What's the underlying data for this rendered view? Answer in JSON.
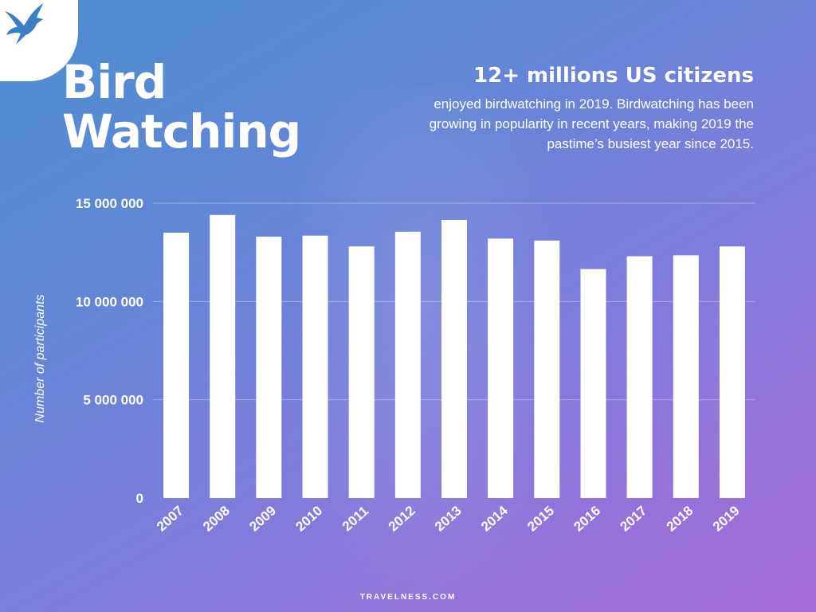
{
  "brand": {
    "logo_icon": "bird-icon",
    "footer": "TRAVELNESS.COM"
  },
  "title_lines": [
    "Bird",
    "Watching"
  ],
  "headline": "12+ millions US citizens",
  "description": "enjoyed birdwatching in 2019. Birdwatching has been growing in popularity in recent years, making 2019 the pastime’s busiest year since 2015.",
  "colors": {
    "bar": "#ffffff",
    "text": "#ffffff",
    "gridline": "rgba(255,255,255,0.35)"
  },
  "chart_data": {
    "type": "bar",
    "categories": [
      "2007",
      "2008",
      "2009",
      "2010",
      "2011",
      "2012",
      "2013",
      "2014",
      "2015",
      "2016",
      "2017",
      "2018",
      "2019"
    ],
    "values": [
      13500000,
      14400000,
      13300000,
      13350000,
      12800000,
      13550000,
      14150000,
      13200000,
      13100000,
      11650000,
      12300000,
      12350000,
      12800000
    ],
    "ylabel": "Number of participants",
    "ylim": [
      0,
      15000000
    ],
    "y_ticks": [
      {
        "value": 0,
        "label": "0"
      },
      {
        "value": 5000000,
        "label": "5 000 000"
      },
      {
        "value": 10000000,
        "label": "10 000 000"
      },
      {
        "value": 15000000,
        "label": "15 000 000"
      }
    ],
    "grid": true
  }
}
